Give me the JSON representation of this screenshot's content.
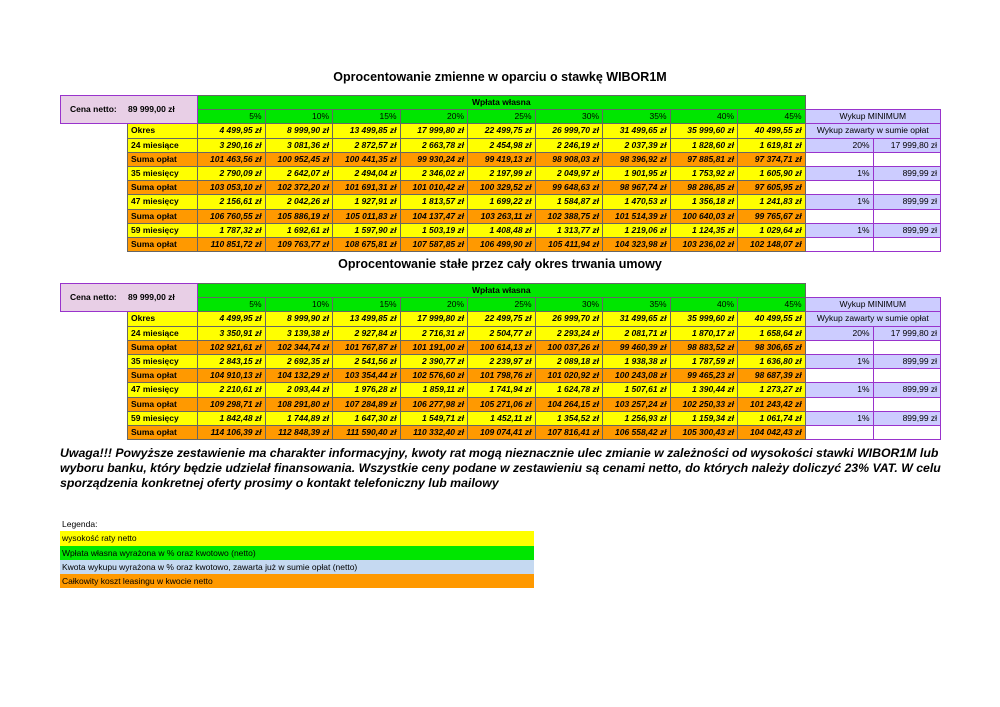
{
  "tables": [
    {
      "title": "Oprocentowanie zmienne w oparciu o stawkę WIBOR1M",
      "price_label": "Cena netto:",
      "price_value": "89 999,00 zł",
      "down_payment_header": "Wpłata własna",
      "percents": [
        "5%",
        "10%",
        "15%",
        "20%",
        "25%",
        "30%",
        "35%",
        "40%",
        "45%"
      ],
      "buyout_header": "Wykup MINIMUM",
      "rows": [
        {
          "label": "Okres",
          "values": [
            "4 499,95 zł",
            "8 999,90 zł",
            "13 499,85 zł",
            "17 999,80 zł",
            "22 499,75 zł",
            "26 999,70 zł",
            "31 499,65 zł",
            "35 999,60 zł",
            "40 499,55 zł"
          ],
          "buyout_note": "Wykup zawarty w sumie opłat"
        },
        {
          "label": "24 miesiące",
          "values": [
            "3 290,16 zł",
            "3 081,36 zł",
            "2 872,57 zł",
            "2 663,78 zł",
            "2 454,98 zł",
            "2 246,19 zł",
            "2 037,39 zł",
            "1 828,60 zł",
            "1 619,81 zł"
          ],
          "buyout_percent": "20%",
          "buyout_amount": "17 999,80 zł"
        },
        {
          "label": "Suma opłat",
          "values": [
            "101 463,56 zł",
            "100 952,45 zł",
            "100 441,35 zł",
            "99 930,24 zł",
            "99 419,13 zł",
            "98 908,03 zł",
            "98 396,92 zł",
            "97 885,81 zł",
            "97 374,71 zł"
          ]
        },
        {
          "label": "35 miesięcy",
          "values": [
            "2 790,09 zł",
            "2 642,07 zł",
            "2 494,04 zł",
            "2 346,02 zł",
            "2 197,99 zł",
            "2 049,97 zł",
            "1 901,95 zł",
            "1 753,92 zł",
            "1 605,90 zł"
          ],
          "buyout_percent": "1%",
          "buyout_amount": "899,99 zł"
        },
        {
          "label": "Suma opłat",
          "values": [
            "103 053,10 zł",
            "102 372,20 zł",
            "101 691,31 zł",
            "101 010,42 zł",
            "100 329,52 zł",
            "99 648,63 zł",
            "98 967,74 zł",
            "98 286,85 zł",
            "97 605,95 zł"
          ]
        },
        {
          "label": "47 miesięcy",
          "values": [
            "2 156,61 zł",
            "2 042,26 zł",
            "1 927,91 zł",
            "1 813,57 zł",
            "1 699,22 zł",
            "1 584,87 zł",
            "1 470,53 zł",
            "1 356,18 zł",
            "1 241,83 zł"
          ],
          "buyout_percent": "1%",
          "buyout_amount": "899,99 zł"
        },
        {
          "label": "Suma opłat",
          "values": [
            "106 760,55 zł",
            "105 886,19 zł",
            "105 011,83 zł",
            "104 137,47 zł",
            "103 263,11 zł",
            "102 388,75 zł",
            "101 514,39 zł",
            "100 640,03 zł",
            "99 765,67 zł"
          ]
        },
        {
          "label": "59 miesięcy",
          "values": [
            "1 787,32 zł",
            "1 692,61 zł",
            "1 597,90 zł",
            "1 503,19 zł",
            "1 408,48 zł",
            "1 313,77 zł",
            "1 219,06 zł",
            "1 124,35 zł",
            "1 029,64 zł"
          ],
          "buyout_percent": "1%",
          "buyout_amount": "899,99 zł"
        },
        {
          "label": "Suma opłat",
          "values": [
            "110 851,72 zł",
            "109 763,77 zł",
            "108 675,81 zł",
            "107 587,85 zł",
            "106 499,90 zł",
            "105 411,94 zł",
            "104 323,98 zł",
            "103 236,02 zł",
            "102 148,07 zł"
          ]
        }
      ]
    },
    {
      "title": "Oprocentowanie stałe przez cały okres trwania umowy",
      "price_label": "Cena netto:",
      "price_value": "89 999,00 zł",
      "down_payment_header": "Wpłata własna",
      "percents": [
        "5%",
        "10%",
        "15%",
        "20%",
        "25%",
        "30%",
        "35%",
        "40%",
        "45%"
      ],
      "buyout_header": "Wykup MINIMUM",
      "rows": [
        {
          "label": "Okres",
          "values": [
            "4 499,95 zł",
            "8 999,90 zł",
            "13 499,85 zł",
            "17 999,80 zł",
            "22 499,75 zł",
            "26 999,70 zł",
            "31 499,65 zł",
            "35 999,60 zł",
            "40 499,55 zł"
          ],
          "buyout_note": "Wykup zawarty w sumie opłat"
        },
        {
          "label": "24 miesiące",
          "values": [
            "3 350,91 zł",
            "3 139,38 zł",
            "2 927,84 zł",
            "2 716,31 zł",
            "2 504,77 zł",
            "2 293,24 zł",
            "2 081,71 zł",
            "1 870,17 zł",
            "1 658,64 zł"
          ],
          "buyout_percent": "20%",
          "buyout_amount": "17 999,80 zł"
        },
        {
          "label": "Suma opłat",
          "values": [
            "102 921,61 zł",
            "102 344,74 zł",
            "101 767,87 zł",
            "101 191,00 zł",
            "100 614,13 zł",
            "100 037,26 zł",
            "99 460,39 zł",
            "98 883,52 zł",
            "98 306,65 zł"
          ]
        },
        {
          "label": "35 miesięcy",
          "values": [
            "2 843,15 zł",
            "2 692,35 zł",
            "2 541,56 zł",
            "2 390,77 zł",
            "2 239,97 zł",
            "2 089,18 zł",
            "1 938,38 zł",
            "1 787,59 zł",
            "1 636,80 zł"
          ],
          "buyout_percent": "1%",
          "buyout_amount": "899,99 zł"
        },
        {
          "label": "Suma opłat",
          "values": [
            "104 910,13 zł",
            "104 132,29 zł",
            "103 354,44 zł",
            "102 576,60 zł",
            "101 798,76 zł",
            "101 020,92 zł",
            "100 243,08 zł",
            "99 465,23 zł",
            "98 687,39 zł"
          ]
        },
        {
          "label": "47 miesięcy",
          "values": [
            "2 210,61 zł",
            "2 093,44 zł",
            "1 976,28 zł",
            "1 859,11 zł",
            "1 741,94 zł",
            "1 624,78 zł",
            "1 507,61 zł",
            "1 390,44 zł",
            "1 273,27 zł"
          ],
          "buyout_percent": "1%",
          "buyout_amount": "899,99 zł"
        },
        {
          "label": "Suma opłat",
          "values": [
            "109 298,71 zł",
            "108 291,80 zł",
            "107 284,89 zł",
            "106 277,98 zł",
            "105 271,06 zł",
            "104 264,15 zł",
            "103 257,24 zł",
            "102 250,33 zł",
            "101 243,42 zł"
          ]
        },
        {
          "label": "59 miesięcy",
          "values": [
            "1 842,48 zł",
            "1 744,89 zł",
            "1 647,30 zł",
            "1 549,71 zł",
            "1 452,11 zł",
            "1 354,52 zł",
            "1 256,93 zł",
            "1 159,34 zł",
            "1 061,74 zł"
          ],
          "buyout_percent": "1%",
          "buyout_amount": "899,99 zł"
        },
        {
          "label": "Suma opłat",
          "values": [
            "114 106,39 zł",
            "112 848,39 zł",
            "111 590,40 zł",
            "110 332,40 zł",
            "109 074,41 zł",
            "107 816,41 zł",
            "106 558,42 zł",
            "105 300,43 zł",
            "104 042,43 zł"
          ]
        }
      ]
    }
  ],
  "notice": "Uwaga!!! Powyższe zestawienie ma charakter informacyjny, kwoty rat mogą nieznacznie ulec zmianie w zależności od wysokości stawki WIBOR1M lub wyboru banku, który będzie udzielał finansowania. Wszystkie ceny podane w zestawieniu są cenami netto, do których należy doliczyć 23% VAT. W celu sporządzenia konkretnej oferty prosimy o kontakt telefoniczny lub mailowy",
  "legend": {
    "title": "Legenda:",
    "items": [
      {
        "text": "wysokość raty netto",
        "color": "#ffff00"
      },
      {
        "text": "Wpłata własna wyrażona w % oraz kwotowo (netto)",
        "color": "#00e600"
      },
      {
        "text": "Kwota wykupu wyrażona w % oraz kwotowo, zawarta już w sumie opłat (netto)",
        "color": "#c5d9f1"
      },
      {
        "text": "Całkowity koszt leasingu w kwocie netto",
        "color": "#ff9900"
      }
    ]
  }
}
